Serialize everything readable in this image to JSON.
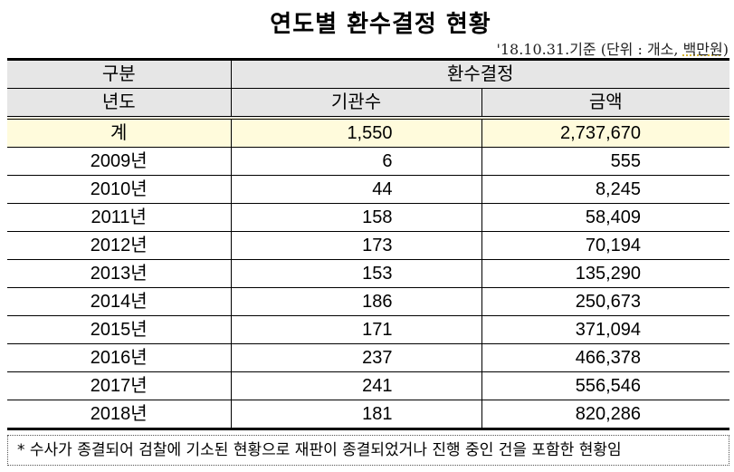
{
  "title": "연도별 환수결정 현황",
  "basis_prefix": "'18.10.31.기준 (단위 : 개소, ",
  "basis_unit": "백만원",
  "basis_suffix": ")",
  "header": {
    "group": "구분",
    "decision": "환수결정",
    "year": "년도",
    "count": "기관수",
    "amount": "금액"
  },
  "total": {
    "label": "계",
    "count": "1,550",
    "amount": "2,737,670"
  },
  "rows": [
    {
      "year": "2009년",
      "count": "6",
      "amount": "555"
    },
    {
      "year": "2010년",
      "count": "44",
      "amount": "8,245"
    },
    {
      "year": "2011년",
      "count": "158",
      "amount": "58,409"
    },
    {
      "year": "2012년",
      "count": "173",
      "amount": "70,194"
    },
    {
      "year": "2013년",
      "count": "153",
      "amount": "135,290"
    },
    {
      "year": "2014년",
      "count": "186",
      "amount": "250,673"
    },
    {
      "year": "2015년",
      "count": "171",
      "amount": "371,094"
    },
    {
      "year": "2016년",
      "count": "237",
      "amount": "466,378"
    },
    {
      "year": "2017년",
      "count": "241",
      "amount": "556,546"
    },
    {
      "year": "2018년",
      "count": "181",
      "amount": "820,286"
    }
  ],
  "note": "* 수사가 종결되어 검찰에 기소된 현황으로 재판이 종결되었거나 진행 중인 건을 포함한 현황임",
  "colors": {
    "header_bg": "#e6e6e6",
    "total_bg": "#fffbdc"
  }
}
